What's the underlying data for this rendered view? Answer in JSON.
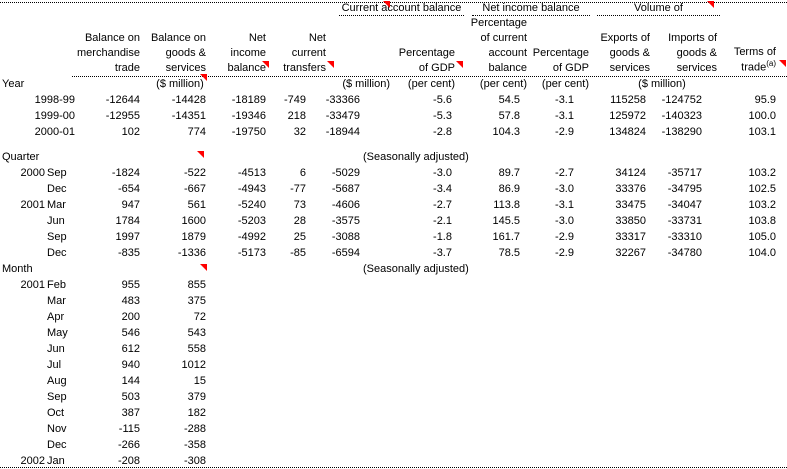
{
  "table": {
    "group_headers": [
      "Current account balance",
      "Net income balance",
      "Volume of"
    ],
    "column_headers": {
      "balance_merchandise_trade": [
        "Balance on",
        "merchandise",
        "trade"
      ],
      "balance_goods_services": [
        "Balance on",
        "goods &",
        "services"
      ],
      "net_income_balance": [
        "Net",
        "income",
        "balance"
      ],
      "net_current_transfers": [
        "Net",
        "current",
        "transfers"
      ],
      "pct_gdp_current_account": [
        "Percentage",
        "of GDP"
      ],
      "pct_current_account_balance": [
        "Percentage",
        "of current",
        "account",
        "balance"
      ],
      "pct_gdp_net_income": [
        "Percentage",
        "of GDP"
      ],
      "exports_goods_services": [
        "Exports of",
        "goods &",
        "services"
      ],
      "imports_goods_services": [
        "Imports of",
        "goods &",
        "services"
      ],
      "terms_of_trade": [
        "Terms of",
        "trade"
      ],
      "terms_note_ref": "(a)"
    },
    "units_row": {
      "label": "Year",
      "unit_main": "($ million)",
      "unit_cab": "($ million)",
      "unit_pct_gdp_1": "(per cent)",
      "unit_pct_cab": "(per cent)",
      "unit_pct_gdp_2": "(per cent)",
      "unit_volume": "($ million)"
    },
    "comment_marker_color": "#ff0000",
    "sections": [
      {
        "id": "year",
        "rows": [
          {
            "label": "1998-99",
            "values": [
              "-12644",
              "-14428",
              "-18189",
              "-749",
              "-33366",
              "-5.6",
              "54.5",
              "-3.1",
              "115258",
              "-124752",
              "95.9"
            ]
          },
          {
            "label": "1999-00",
            "values": [
              "-12955",
              "-14351",
              "-19346",
              "218",
              "-33479",
              "-5.3",
              "57.8",
              "-3.1",
              "125972",
              "-140323",
              "100.0"
            ]
          },
          {
            "label": "2000-01",
            "values": [
              "102",
              "774",
              "-19750",
              "32",
              "-18944",
              "-2.8",
              "104.3",
              "-2.9",
              "134824",
              "-138290",
              "103.1"
            ]
          }
        ]
      },
      {
        "id": "quarter",
        "title": "Quarter",
        "note": "(Seasonally adjusted)",
        "rows": [
          {
            "year": "2000",
            "period": "Sep",
            "values": [
              "-1824",
              "-522",
              "-4513",
              "6",
              "-5029",
              "-3.0",
              "89.7",
              "-2.7",
              "34124",
              "-35717",
              "103.2"
            ]
          },
          {
            "year": "",
            "period": "Dec",
            "values": [
              "-654",
              "-667",
              "-4943",
              "-77",
              "-5687",
              "-3.4",
              "86.9",
              "-3.0",
              "33376",
              "-34795",
              "102.5"
            ]
          },
          {
            "year": "2001",
            "period": "Mar",
            "values": [
              "947",
              "561",
              "-5240",
              "73",
              "-4606",
              "-2.7",
              "113.8",
              "-3.1",
              "33475",
              "-34047",
              "103.2"
            ]
          },
          {
            "year": "",
            "period": "Jun",
            "values": [
              "1784",
              "1600",
              "-5203",
              "28",
              "-3575",
              "-2.1",
              "145.5",
              "-3.0",
              "33850",
              "-33731",
              "103.8"
            ]
          },
          {
            "year": "",
            "period": "Sep",
            "values": [
              "1997",
              "1879",
              "-4992",
              "25",
              "-3088",
              "-1.8",
              "161.7",
              "-2.9",
              "33317",
              "-33310",
              "105.0"
            ]
          },
          {
            "year": "",
            "period": "Dec",
            "values": [
              "-835",
              "-1336",
              "-5173",
              "-85",
              "-6594",
              "-3.7",
              "78.5",
              "-2.9",
              "32267",
              "-34780",
              "104.0"
            ]
          }
        ]
      },
      {
        "id": "month",
        "title": "Month",
        "note": "(Seasonally adjusted)",
        "rows": [
          {
            "year": "2001",
            "period": "Feb",
            "values": [
              "955",
              "855"
            ]
          },
          {
            "year": "",
            "period": "Mar",
            "values": [
              "483",
              "375"
            ]
          },
          {
            "year": "",
            "period": "Apr",
            "values": [
              "200",
              "72"
            ]
          },
          {
            "year": "",
            "period": "May",
            "values": [
              "546",
              "543"
            ]
          },
          {
            "year": "",
            "period": "Jun",
            "values": [
              "612",
              "558"
            ]
          },
          {
            "year": "",
            "period": "Jul",
            "values": [
              "940",
              "1012"
            ]
          },
          {
            "year": "",
            "period": "Aug",
            "values": [
              "144",
              "15"
            ]
          },
          {
            "year": "",
            "period": "Sep",
            "values": [
              "503",
              "379"
            ]
          },
          {
            "year": "",
            "period": "Oct",
            "values": [
              "387",
              "182"
            ]
          },
          {
            "year": "",
            "period": "Nov",
            "values": [
              "-115",
              "-288"
            ]
          },
          {
            "year": "",
            "period": "Dec",
            "values": [
              "-266",
              "-358"
            ]
          },
          {
            "year": "2002",
            "period": "Jan",
            "values": [
              "-208",
              "-308"
            ]
          }
        ]
      }
    ]
  }
}
